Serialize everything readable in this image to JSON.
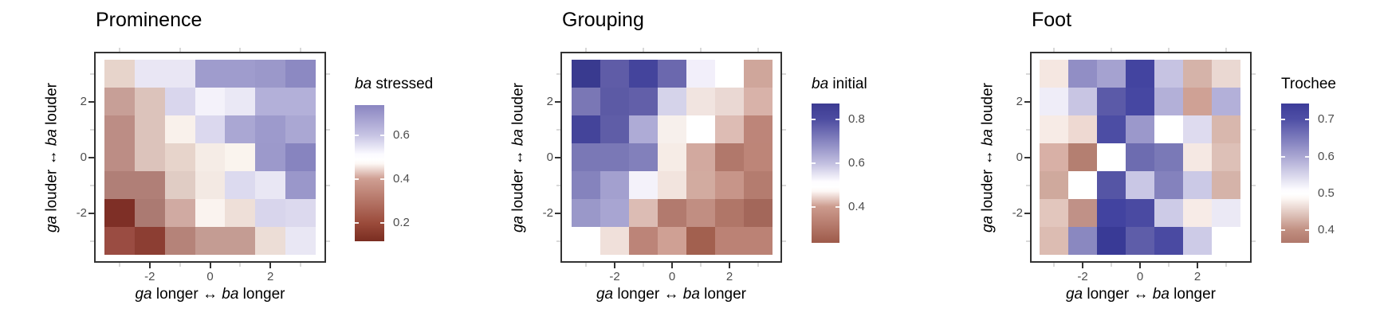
{
  "figure": {
    "background": "#ffffff"
  },
  "axes": {
    "x_title_segments": [
      {
        "t": "ga",
        "i": true
      },
      {
        "t": " longer ",
        "i": false
      },
      {
        "t": "↔",
        "i": false
      },
      {
        "t": "  ",
        "i": false
      },
      {
        "t": "ba",
        "i": true
      },
      {
        "t": " longer",
        "i": false
      }
    ],
    "y_title_segments": [
      {
        "t": "ga",
        "i": true
      },
      {
        "t": " louder ",
        "i": false
      },
      {
        "t": "↔",
        "i": false
      },
      {
        "t": "  ",
        "i": false
      },
      {
        "t": "ba",
        "i": true
      },
      {
        "t": " louder",
        "i": false
      }
    ],
    "x_tick_labels": [
      "-2",
      "0",
      "2"
    ],
    "y_tick_labels": [
      "2",
      "0",
      "-2"
    ]
  },
  "chart_data": [
    {
      "type": "heatmap",
      "title": "Prominence",
      "xlabel": "ga longer <-> ba longer",
      "ylabel": "ga louder <-> ba louder",
      "x": [
        -3,
        -2,
        -1,
        0,
        1,
        2,
        3
      ],
      "y": [
        3,
        2,
        1,
        0,
        -1,
        -2,
        -3
      ],
      "values": [
        [
          0.44,
          0.56,
          0.56,
          0.69,
          0.69,
          0.7,
          0.73
        ],
        [
          0.38,
          0.42,
          0.59,
          0.54,
          0.56,
          0.65,
          0.65
        ],
        [
          0.35,
          0.42,
          0.48,
          0.59,
          0.67,
          0.7,
          0.67
        ],
        [
          0.35,
          0.42,
          0.44,
          0.47,
          0.49,
          0.7,
          0.73
        ],
        [
          0.32,
          0.32,
          0.43,
          0.47,
          0.59,
          0.56,
          0.7
        ],
        [
          0.17,
          0.31,
          0.39,
          0.49,
          0.46,
          0.59,
          0.59
        ],
        [
          0.24,
          0.21,
          0.33,
          0.38,
          0.38,
          0.45,
          0.56
        ]
      ],
      "cell_colors": [
        [
          "#e7d4cb",
          "#e9e6f4",
          "#e9e6f4",
          "#9f9ccd",
          "#9f9ccd",
          "#9b98ca",
          "#8c89c2"
        ],
        [
          "#c79f97",
          "#dcc3bb",
          "#d9d6ed",
          "#f4f2fa",
          "#eae8f5",
          "#b3b0d9",
          "#b3b0d9"
        ],
        [
          "#bc8d85",
          "#dcc3bb",
          "#f9f1eb",
          "#dbd8ee",
          "#aaa7d3",
          "#9d9acc",
          "#aaa7d3"
        ],
        [
          "#bc8d85",
          "#dcc3bb",
          "#e7d4cb",
          "#f5ece6",
          "#faf4ee",
          "#9c99cb",
          "#8784bf"
        ],
        [
          "#b07f77",
          "#b07f77",
          "#e0ccc4",
          "#f3e9e3",
          "#dcdaef",
          "#e9e7f4",
          "#9a97ca"
        ],
        [
          "#7e2f26",
          "#ab7a72",
          "#d0aaa2",
          "#faf3ef",
          "#eedfd8",
          "#d8d5ec",
          "#dcd9ee"
        ],
        [
          "#9a4c42",
          "#8c3e33",
          "#b58379",
          "#c49c93",
          "#c49c93",
          "#ecddd6",
          "#e9e7f4"
        ]
      ],
      "legend": {
        "title_segments": [
          {
            "t": "ba",
            "i": true
          },
          {
            "t": " stressed",
            "i": false
          }
        ],
        "tick_labels": [
          "0.6",
          "0.4",
          "0.2"
        ],
        "tick_pos": [
          0.222,
          0.544,
          0.865
        ],
        "gradient_stops": [
          [
            0,
            "#8a85c1"
          ],
          [
            0.22,
            "#c6c3e3"
          ],
          [
            0.36,
            "#fbfaff"
          ],
          [
            0.4,
            "#ffffff"
          ],
          [
            0.43,
            "#fdf8f5"
          ],
          [
            0.54,
            "#cf9f93"
          ],
          [
            0.87,
            "#9a4a3a"
          ],
          [
            1,
            "#7a2d21"
          ]
        ]
      }
    },
    {
      "type": "heatmap",
      "title": "Grouping",
      "xlabel": "ga longer <-> ba longer",
      "ylabel": "ga louder <-> ba louder",
      "x": [
        -3,
        -2,
        -1,
        0,
        1,
        2,
        3
      ],
      "y": [
        3,
        2,
        1,
        0,
        -1,
        -2,
        -3
      ],
      "values": [
        [
          0.87,
          0.8,
          0.84,
          0.78,
          0.55,
          0.5,
          0.38
        ],
        [
          0.76,
          0.8,
          0.79,
          0.62,
          0.46,
          0.44,
          0.38
        ],
        [
          0.84,
          0.8,
          0.7,
          0.48,
          0.5,
          0.41,
          0.34
        ],
        [
          0.76,
          0.76,
          0.75,
          0.48,
          0.38,
          0.33,
          0.34
        ],
        [
          0.75,
          0.7,
          0.55,
          0.46,
          0.38,
          0.36,
          0.33
        ],
        [
          0.72,
          0.7,
          0.41,
          0.33,
          0.36,
          0.32,
          0.3
        ],
        [
          0.5,
          0.46,
          0.34,
          0.38,
          0.28,
          0.33,
          0.33
        ]
      ],
      "cell_colors": [
        [
          "#393a8f",
          "#5f5ca7",
          "#44449c",
          "#6b68ae",
          "#f2effa",
          "#ffffff",
          "#cfa69b"
        ],
        [
          "#7a77b5",
          "#5c5aa5",
          "#625fa9",
          "#d5d3ea",
          "#f1e4e0",
          "#ead8d3",
          "#d8b2a9"
        ],
        [
          "#44449a",
          "#5f5da7",
          "#aeabd6",
          "#f7f0ec",
          "#ffffff",
          "#ddbcb4",
          "#bd8579"
        ],
        [
          "#7a78b6",
          "#7a78b6",
          "#8280bb",
          "#f6ece6",
          "#d2a99f",
          "#b1786b",
          "#bd8578"
        ],
        [
          "#8583bd",
          "#a3a0cf",
          "#f4f2fa",
          "#f2e4de",
          "#d2aba0",
          "#c79589",
          "#b47c6f"
        ],
        [
          "#9a98c9",
          "#a8a5d2",
          "#dcbcb4",
          "#b27a6e",
          "#c18e82",
          "#b07668",
          "#a3675a"
        ],
        [
          "#ffffff",
          "#f0e0da",
          "#bc8478",
          "#cfa094",
          "#a2604f",
          "#bb8275",
          "#bb8275"
        ]
      ],
      "legend": {
        "title_segments": [
          {
            "t": "ba",
            "i": true
          },
          {
            "t": " initial",
            "i": false
          }
        ],
        "tick_labels": [
          "0.8",
          "0.6",
          "0.4"
        ],
        "tick_pos": [
          0.114,
          0.429,
          0.743
        ],
        "gradient_stops": [
          [
            0,
            "#3c3b92"
          ],
          [
            0.11,
            "#4c4ba0"
          ],
          [
            0.43,
            "#c2bfe0"
          ],
          [
            0.56,
            "#fdfcff"
          ],
          [
            0.6,
            "#ffffff"
          ],
          [
            0.63,
            "#fdf7f5"
          ],
          [
            0.74,
            "#cc9b8e"
          ],
          [
            1,
            "#9e5a4a"
          ]
        ]
      }
    },
    {
      "type": "heatmap",
      "title": "Foot",
      "xlabel": "ga longer <-> ba longer",
      "ylabel": "ga louder <-> ba louder",
      "x": [
        -3,
        -2,
        -1,
        0,
        1,
        2,
        3
      ],
      "y": [
        3,
        2,
        1,
        0,
        -1,
        -2,
        -3
      ],
      "values": [
        [
          0.47,
          0.63,
          0.6,
          0.72,
          0.56,
          0.43,
          0.46
        ],
        [
          0.52,
          0.56,
          0.69,
          0.72,
          0.58,
          0.41,
          0.58
        ],
        [
          0.48,
          0.46,
          0.71,
          0.61,
          0.5,
          0.54,
          0.43
        ],
        [
          0.42,
          0.38,
          0.5,
          0.66,
          0.64,
          0.48,
          0.44
        ],
        [
          0.41,
          0.5,
          0.69,
          0.56,
          0.64,
          0.56,
          0.43
        ],
        [
          0.44,
          0.39,
          0.72,
          0.71,
          0.56,
          0.48,
          0.52
        ],
        [
          0.44,
          0.63,
          0.74,
          0.69,
          0.71,
          0.56,
          0.5
        ]
      ],
      "cell_colors": [
        [
          "#f5e7e1",
          "#918ec5",
          "#a5a2d0",
          "#4344a0",
          "#c6c3e2",
          "#d5b3a9",
          "#ead8d2"
        ],
        [
          "#efedf8",
          "#c8c5e3",
          "#5b5aa8",
          "#4647a2",
          "#b3b0d8",
          "#cfa195",
          "#b3b0d9"
        ],
        [
          "#f7ebe6",
          "#eed9d2",
          "#4c4da4",
          "#9b98cb",
          "#ffffff",
          "#dedbef",
          "#d8b7ad"
        ],
        [
          "#d8b0a6",
          "#b47f71",
          "#ffffff",
          "#6d6cb0",
          "#7a79b7",
          "#f5e8e3",
          "#ddc0b7"
        ],
        [
          "#cfa99d",
          "#ffffff",
          "#5555a5",
          "#c9c7e5",
          "#8482bd",
          "#cbc9e6",
          "#d5b3a9"
        ],
        [
          "#e2c6bd",
          "#c09187",
          "#4243a0",
          "#4a4aa2",
          "#cdcbe7",
          "#f7ebe7",
          "#ebe9f5"
        ],
        [
          "#dcbcb2",
          "#8a88c0",
          "#393a96",
          "#5e5da9",
          "#4a4aa2",
          "#cdcbe7",
          "#ffffff"
        ]
      ],
      "legend": {
        "title_segments": [
          {
            "t": "Trochee",
            "i": false
          }
        ],
        "tick_labels": [
          "0.7",
          "0.6",
          "0.5",
          "0.4"
        ],
        "tick_pos": [
          0.114,
          0.383,
          0.646,
          0.909
        ],
        "gradient_stops": [
          [
            0,
            "#3c3c99"
          ],
          [
            0.11,
            "#4e4ea5"
          ],
          [
            0.38,
            "#a9a6d2"
          ],
          [
            0.62,
            "#fdfcff"
          ],
          [
            0.65,
            "#ffffff"
          ],
          [
            0.68,
            "#fdf8f5"
          ],
          [
            0.91,
            "#c08e80"
          ],
          [
            1,
            "#b0786b"
          ]
        ]
      }
    }
  ]
}
